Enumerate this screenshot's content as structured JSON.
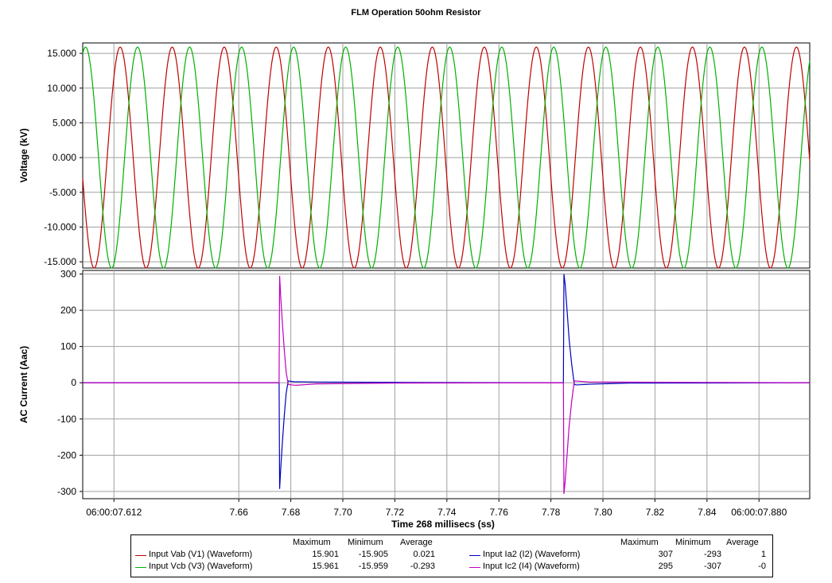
{
  "chart_data": [
    {
      "type": "line",
      "title": "FLM Operation 50ohm Resistor",
      "ylabel": "Voltage (kV)",
      "ylim": [
        -15.9,
        16.5
      ],
      "y_ticks": [
        "15.000",
        "10.000",
        "5.000",
        "0.000",
        "-5.000",
        "-10.000",
        "-15.000"
      ],
      "y_tick_values": [
        15,
        10,
        5,
        0,
        -5,
        -10,
        -15
      ],
      "xlim": [
        7.6,
        7.8795
      ],
      "grid": true,
      "series": [
        {
          "name": "Input Vab (V1) (Waveform)",
          "color": "#c00000",
          "amplitude": 15.9,
          "freq_hz": 50,
          "peak_time": 7.6144
        },
        {
          "name": "Input Vcb (V3) (Waveform)",
          "color": "#00b000",
          "amplitude": 15.9,
          "freq_hz": 50,
          "peak_time": 7.6211
        }
      ]
    },
    {
      "type": "line",
      "ylabel": "AC Current (Aac)",
      "ylim": [
        -320,
        310
      ],
      "y_ticks": [
        "300",
        "200",
        "100",
        "0",
        "-100",
        "-200",
        "-300"
      ],
      "y_tick_values": [
        300,
        200,
        100,
        0,
        -100,
        -200,
        -300
      ],
      "xlabel": "Time 268 millisecs (ss)",
      "x_ticks": [
        "06:00:07.612",
        "7.66",
        "7.68",
        "7.70",
        "7.72",
        "7.74",
        "7.76",
        "7.78",
        "7.80",
        "7.82",
        "7.84",
        "06:00:07.880"
      ],
      "x_tick_values": [
        7.612,
        7.66,
        7.68,
        7.7,
        7.72,
        7.74,
        7.76,
        7.78,
        7.8,
        7.82,
        7.84,
        7.86
      ],
      "xlim": [
        7.6,
        7.8795
      ],
      "grid": true,
      "series": [
        {
          "name": "Input Ia2 (I2) (Waveform)",
          "color": "#0000c0",
          "points": [
            [
              7.6,
              0
            ],
            [
              7.6755,
              0
            ],
            [
              7.6757,
              -293
            ],
            [
              7.6761,
              -240
            ],
            [
              7.6768,
              -160
            ],
            [
              7.6775,
              -90
            ],
            [
              7.6782,
              -30
            ],
            [
              7.679,
              5
            ],
            [
              7.681,
              3
            ],
            [
              7.69,
              2
            ],
            [
              7.72,
              1
            ],
            [
              7.7848,
              0
            ],
            [
              7.785,
              300
            ],
            [
              7.7855,
              270
            ],
            [
              7.7862,
              200
            ],
            [
              7.787,
              120
            ],
            [
              7.788,
              50
            ],
            [
              7.789,
              -5
            ],
            [
              7.79,
              -6
            ],
            [
              7.795,
              -4
            ],
            [
              7.81,
              -1
            ],
            [
              7.8795,
              0
            ]
          ]
        },
        {
          "name": "Input Ic2 (I4) (Waveform)",
          "color": "#c000c0",
          "points": [
            [
              7.6,
              0
            ],
            [
              7.6755,
              0
            ],
            [
              7.6757,
              295
            ],
            [
              7.6761,
              240
            ],
            [
              7.6768,
              160
            ],
            [
              7.6775,
              90
            ],
            [
              7.6782,
              30
            ],
            [
              7.679,
              -5
            ],
            [
              7.682,
              -7
            ],
            [
              7.69,
              -3
            ],
            [
              7.72,
              -1
            ],
            [
              7.7848,
              0
            ],
            [
              7.785,
              -307
            ],
            [
              7.7855,
              -270
            ],
            [
              7.7862,
              -200
            ],
            [
              7.787,
              -120
            ],
            [
              7.788,
              -50
            ],
            [
              7.789,
              5
            ],
            [
              7.795,
              2
            ],
            [
              7.8795,
              0
            ]
          ]
        }
      ]
    }
  ],
  "legend": {
    "headers": {
      "maximum": "Maximum",
      "minimum": "Minimum",
      "average": "Average"
    },
    "left": [
      {
        "name": "Input Vab (V1) (Waveform)",
        "color": "#c00000",
        "max": "15.901",
        "min": "-15.905",
        "avg": "0.021"
      },
      {
        "name": "Input Vcb (V3) (Waveform)",
        "color": "#00b000",
        "max": "15.961",
        "min": "-15.959",
        "avg": "-0.293"
      }
    ],
    "right": [
      {
        "name": "Input Ia2 (I2) (Waveform)",
        "color": "#0000c0",
        "max": "307",
        "min": "-293",
        "avg": "1"
      },
      {
        "name": "Input Ic2 (I4) (Waveform)",
        "color": "#c000c0",
        "max": "295",
        "min": "-307",
        "avg": "-0"
      }
    ]
  }
}
